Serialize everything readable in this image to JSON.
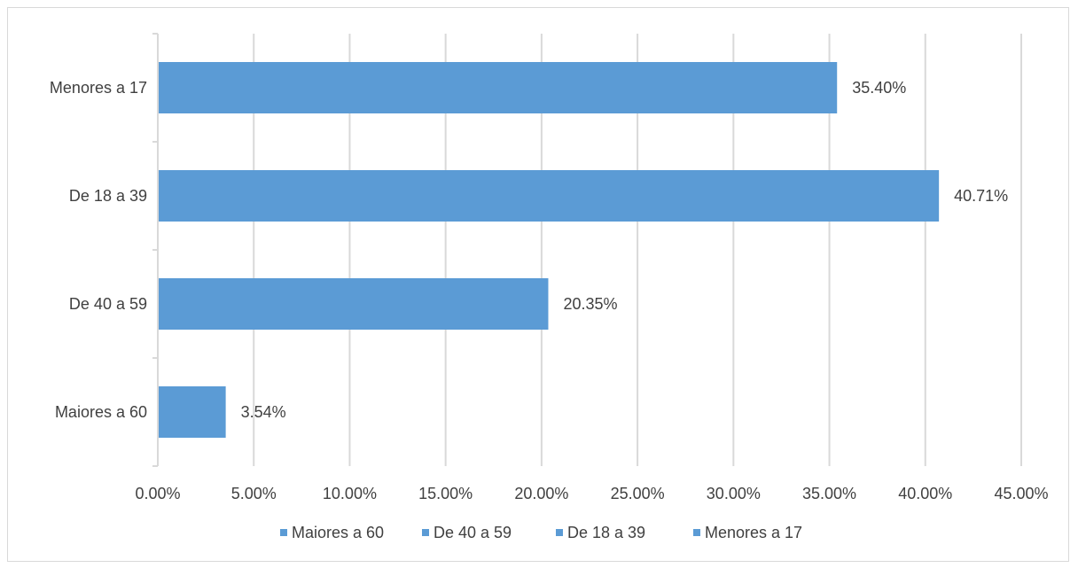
{
  "chart_data": {
    "type": "bar",
    "orientation": "horizontal",
    "categories": [
      "Menores a 17",
      "De 18 a 39",
      "De 40 a 59",
      "Maiores a 60"
    ],
    "values": [
      35.4,
      40.71,
      20.35,
      3.54
    ],
    "data_labels": [
      "35.40%",
      "40.71%",
      "20.35%",
      "3.54%"
    ],
    "x_ticks": [
      "0.00%",
      "5.00%",
      "10.00%",
      "15.00%",
      "20.00%",
      "25.00%",
      "30.00%",
      "35.00%",
      "40.00%",
      "45.00%"
    ],
    "xlim": [
      0,
      45
    ],
    "grid": true,
    "legend_position": "bottom",
    "legend": [
      "Maiores a 60",
      "De 40 a 59",
      "De 18 a 39",
      "Menores a 17"
    ],
    "bar_color": "#5b9bd5",
    "grid_color": "#d9d9d9",
    "text_color": "#404040"
  }
}
